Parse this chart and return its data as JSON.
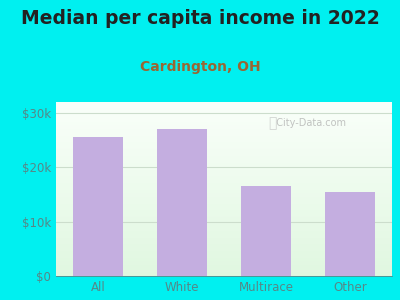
{
  "title": "Median per capita income in 2022",
  "subtitle": "Cardington, OH",
  "categories": [
    "All",
    "White",
    "Multirace",
    "Other"
  ],
  "values": [
    25500,
    27000,
    16500,
    15500
  ],
  "bar_color": "#c4aee0",
  "background_outer": "#00f0f0",
  "background_top": "#f5fff5",
  "background_bottom": "#e0f5e0",
  "title_color": "#222222",
  "subtitle_color": "#996633",
  "tick_color": "#558888",
  "grid_color": "#ccddcc",
  "ylim": [
    0,
    32000
  ],
  "yticks": [
    0,
    10000,
    20000,
    30000
  ],
  "ytick_labels": [
    "$0",
    "$10k",
    "$20k",
    "$30k"
  ],
  "watermark": "City-Data.com",
  "title_fontsize": 13.5,
  "subtitle_fontsize": 10,
  "tick_fontsize": 8.5
}
